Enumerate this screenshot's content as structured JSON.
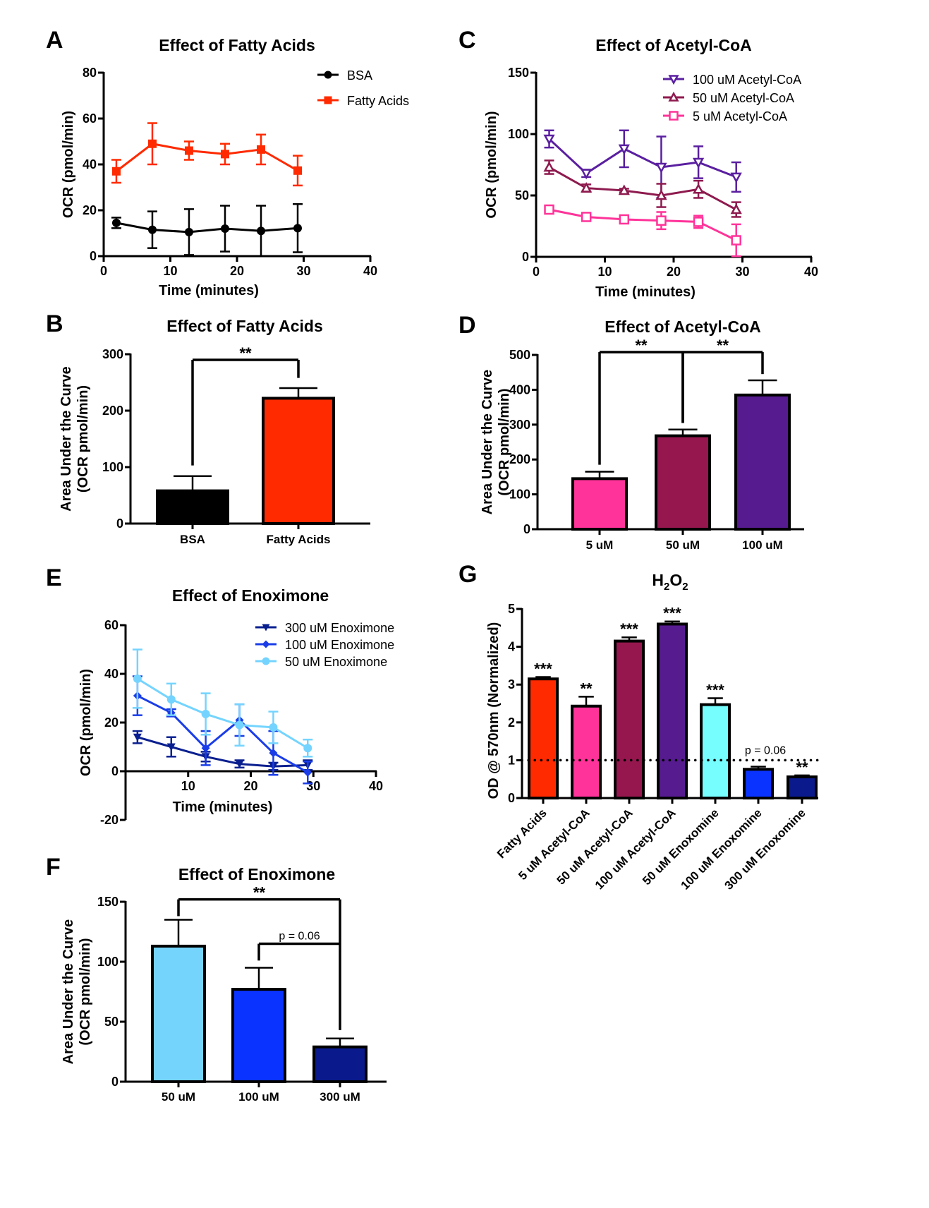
{
  "chart_data": [
    {
      "id": "A",
      "panel_label": "A",
      "type": "line",
      "title": "Effect of Fatty Acids",
      "xlabel": "Time (minutes)",
      "ylabel": "OCR (pmol/min)",
      "xlim": [
        0,
        40
      ],
      "ylim": [
        0,
        80
      ],
      "xticks": [
        0,
        10,
        20,
        30,
        40
      ],
      "yticks": [
        0,
        20,
        40,
        60,
        80
      ],
      "legend_position": "top-right",
      "x": [
        1.9,
        7.3,
        12.8,
        18.2,
        23.6,
        29.1
      ],
      "series": [
        {
          "name": "BSA",
          "color": "#000000",
          "marker": "circle",
          "values": [
            14.5,
            11.5,
            10.5,
            12.0,
            11.0,
            12.2
          ],
          "errors": [
            2.3,
            8.0,
            10.0,
            10.0,
            11.0,
            10.5
          ]
        },
        {
          "name": "Fatty Acids",
          "color": "#ff2a00",
          "marker": "square",
          "values": [
            37.0,
            49.0,
            46.0,
            44.5,
            46.5,
            37.3
          ],
          "errors": [
            5.0,
            9.0,
            4.0,
            4.5,
            6.5,
            6.5
          ]
        }
      ]
    },
    {
      "id": "B",
      "panel_label": "B",
      "type": "bar",
      "title": "Effect of Fatty Acids",
      "xlabel": "",
      "ylabel": "Area Under the Curve\n(OCR pmol/min)",
      "ylabel_lines": [
        "Area Under the Curve",
        "(OCR pmol/min)"
      ],
      "ylim": [
        0,
        300
      ],
      "yticks": [
        0,
        100,
        200,
        300
      ],
      "categories": [
        "BSA",
        "Fatty Acids"
      ],
      "values": [
        58,
        222
      ],
      "errors": [
        26,
        18
      ],
      "colors": [
        "#000000",
        "#ff2a00"
      ],
      "annotations": [
        {
          "from": 0,
          "to": 1,
          "level": 290,
          "drop_to": [
            103,
            258
          ],
          "label": "**"
        }
      ]
    },
    {
      "id": "C",
      "panel_label": "C",
      "type": "line",
      "title": "Effect of Acetyl-CoA",
      "xlabel": "Time (minutes)",
      "ylabel": "OCR (pmol/min)",
      "xlim": [
        0,
        40
      ],
      "ylim": [
        0,
        150
      ],
      "xticks": [
        0,
        10,
        20,
        30,
        40
      ],
      "yticks": [
        0,
        50,
        100,
        150
      ],
      "legend_position": "top-right",
      "x": [
        1.9,
        7.3,
        12.8,
        18.2,
        23.6,
        29.1
      ],
      "series": [
        {
          "name": "100 uM Acetyl-CoA",
          "color": "#5a1fa0",
          "marker": "triangle-down-open",
          "values": [
            96,
            68,
            88,
            73,
            77,
            65
          ],
          "errors": [
            7,
            3,
            15,
            25,
            13,
            12
          ]
        },
        {
          "name": "50 uM Acetyl-CoA",
          "color": "#8e1a4e",
          "marker": "triangle-up-open",
          "values": [
            73,
            56,
            54,
            50,
            55,
            38.5
          ],
          "errors": [
            5.5,
            3,
            1.5,
            9.5,
            7,
            6
          ]
        },
        {
          "name": "5 uM Acetyl-CoA",
          "color": "#ff3399",
          "marker": "square-open",
          "values": [
            38.5,
            32.5,
            30.5,
            29.5,
            28.5,
            13.5
          ],
          "errors": [
            3,
            2,
            3,
            7,
            5,
            13
          ]
        }
      ]
    },
    {
      "id": "D",
      "panel_label": "D",
      "type": "bar",
      "title": "Effect of Acetyl-CoA",
      "xlabel": "",
      "ylabel": "Area Under the Curve\n(OCR pmol/min)",
      "ylabel_lines": [
        "Area Under the Curve",
        "(OCR pmol/min)"
      ],
      "ylim": [
        0,
        500
      ],
      "yticks": [
        0,
        100,
        200,
        300,
        400,
        500
      ],
      "categories": [
        "5 uM",
        "50 uM",
        "100 uM"
      ],
      "values": [
        145,
        268,
        385
      ],
      "errors": [
        20,
        18,
        42
      ],
      "colors": [
        "#ff3399",
        "#96174e",
        "#561b8f"
      ],
      "annotations": [
        {
          "from": 0,
          "to": 1,
          "level": 508,
          "drop_to": [
            185,
            305
          ],
          "label": "**"
        },
        {
          "from": 1,
          "to": 2,
          "level": 508,
          "drop_to": [
            305,
            445
          ],
          "label": "**"
        }
      ]
    },
    {
      "id": "E",
      "panel_label": "E",
      "type": "line",
      "title": "Effect of Enoximone",
      "xlabel": "Time (minutes)",
      "ylabel": "OCR (pmol/min)",
      "xlim": [
        0,
        40
      ],
      "ylim": [
        -20,
        60
      ],
      "xticks": [
        10,
        20,
        30,
        40
      ],
      "yticks": [
        -20,
        0,
        20,
        40,
        60
      ],
      "legend_position": "top-right",
      "x": [
        1.9,
        7.3,
        12.8,
        18.2,
        23.6,
        29.1
      ],
      "series": [
        {
          "name": "300 uM Enoximone",
          "color": "#0a1f8f",
          "marker": "triangle-down",
          "values": [
            14,
            10,
            6,
            3,
            2,
            2.5
          ],
          "errors": [
            2.5,
            4,
            2,
            1.5,
            1.5,
            2
          ]
        },
        {
          "name": "100 uM Enoximone",
          "color": "#1a3de8",
          "marker": "diamond",
          "values": [
            31,
            24,
            9.5,
            21,
            7.5,
            -0.5
          ],
          "errors": [
            8,
            1.5,
            7,
            6.5,
            9,
            4.5
          ]
        },
        {
          "name": "50 uM Enoximone",
          "color": "#74d4ff",
          "marker": "circle",
          "values": [
            38,
            29.5,
            23.5,
            19,
            18,
            9.5
          ],
          "errors": [
            12,
            6.5,
            8.5,
            8.5,
            6.5,
            3.5
          ]
        }
      ]
    },
    {
      "id": "F",
      "panel_label": "F",
      "type": "bar",
      "title": "Effect of Enoximone",
      "xlabel": "",
      "ylabel": "Area Under the Curve\n(OCR pmol/min)",
      "ylabel_lines": [
        "Area Under the Curve",
        "(OCR pmol/min)"
      ],
      "ylim": [
        0,
        150
      ],
      "yticks": [
        0,
        50,
        100,
        150
      ],
      "categories": [
        "50 uM",
        "100 uM",
        "300 uM"
      ],
      "values": [
        113,
        77,
        29
      ],
      "errors": [
        22,
        18,
        7
      ],
      "colors": [
        "#74d4fc",
        "#0a33ff",
        "#0a1a8c"
      ],
      "annotations": [
        {
          "from": 0,
          "to": 2,
          "level": 152,
          "drop_to": [
            138,
            43
          ],
          "label": "**"
        },
        {
          "from": 1,
          "to": 2,
          "level": 115,
          "drop_to": [
            101,
            null
          ],
          "label": "p = 0.06"
        }
      ]
    },
    {
      "id": "G",
      "panel_label": "G",
      "type": "bar",
      "title": "H2O2",
      "title_parts": {
        "base1": "H",
        "sub1": "2",
        "base2": "O",
        "sub2": "2"
      },
      "xlabel": "",
      "ylabel": "OD @ 570nm (Normalized)",
      "ylim": [
        0,
        5
      ],
      "yticks": [
        0,
        1,
        2,
        3,
        4,
        5
      ],
      "reference_line": 1,
      "reference_label": "p = 0.06",
      "categories": [
        "Fatty Acids",
        "5 uM Acetyl-CoA",
        "50 uM Acetyl-CoA",
        "100 uM Acetyl-CoA",
        "50 uM Enoxomine",
        "100 uM Enoxomine",
        "300 uM Enoxomine"
      ],
      "values": [
        3.15,
        2.43,
        4.15,
        4.6,
        2.47,
        0.76,
        0.56
      ],
      "errors": [
        0.05,
        0.25,
        0.1,
        0.07,
        0.17,
        0.07,
        0.04
      ],
      "significance": [
        "***",
        "**",
        "***",
        "***",
        "***",
        "",
        "**"
      ],
      "colors": [
        "#ff2a00",
        "#ff3399",
        "#96174e",
        "#561b8f",
        "#76fdfd",
        "#0a33ff",
        "#0a1a8c"
      ]
    }
  ]
}
